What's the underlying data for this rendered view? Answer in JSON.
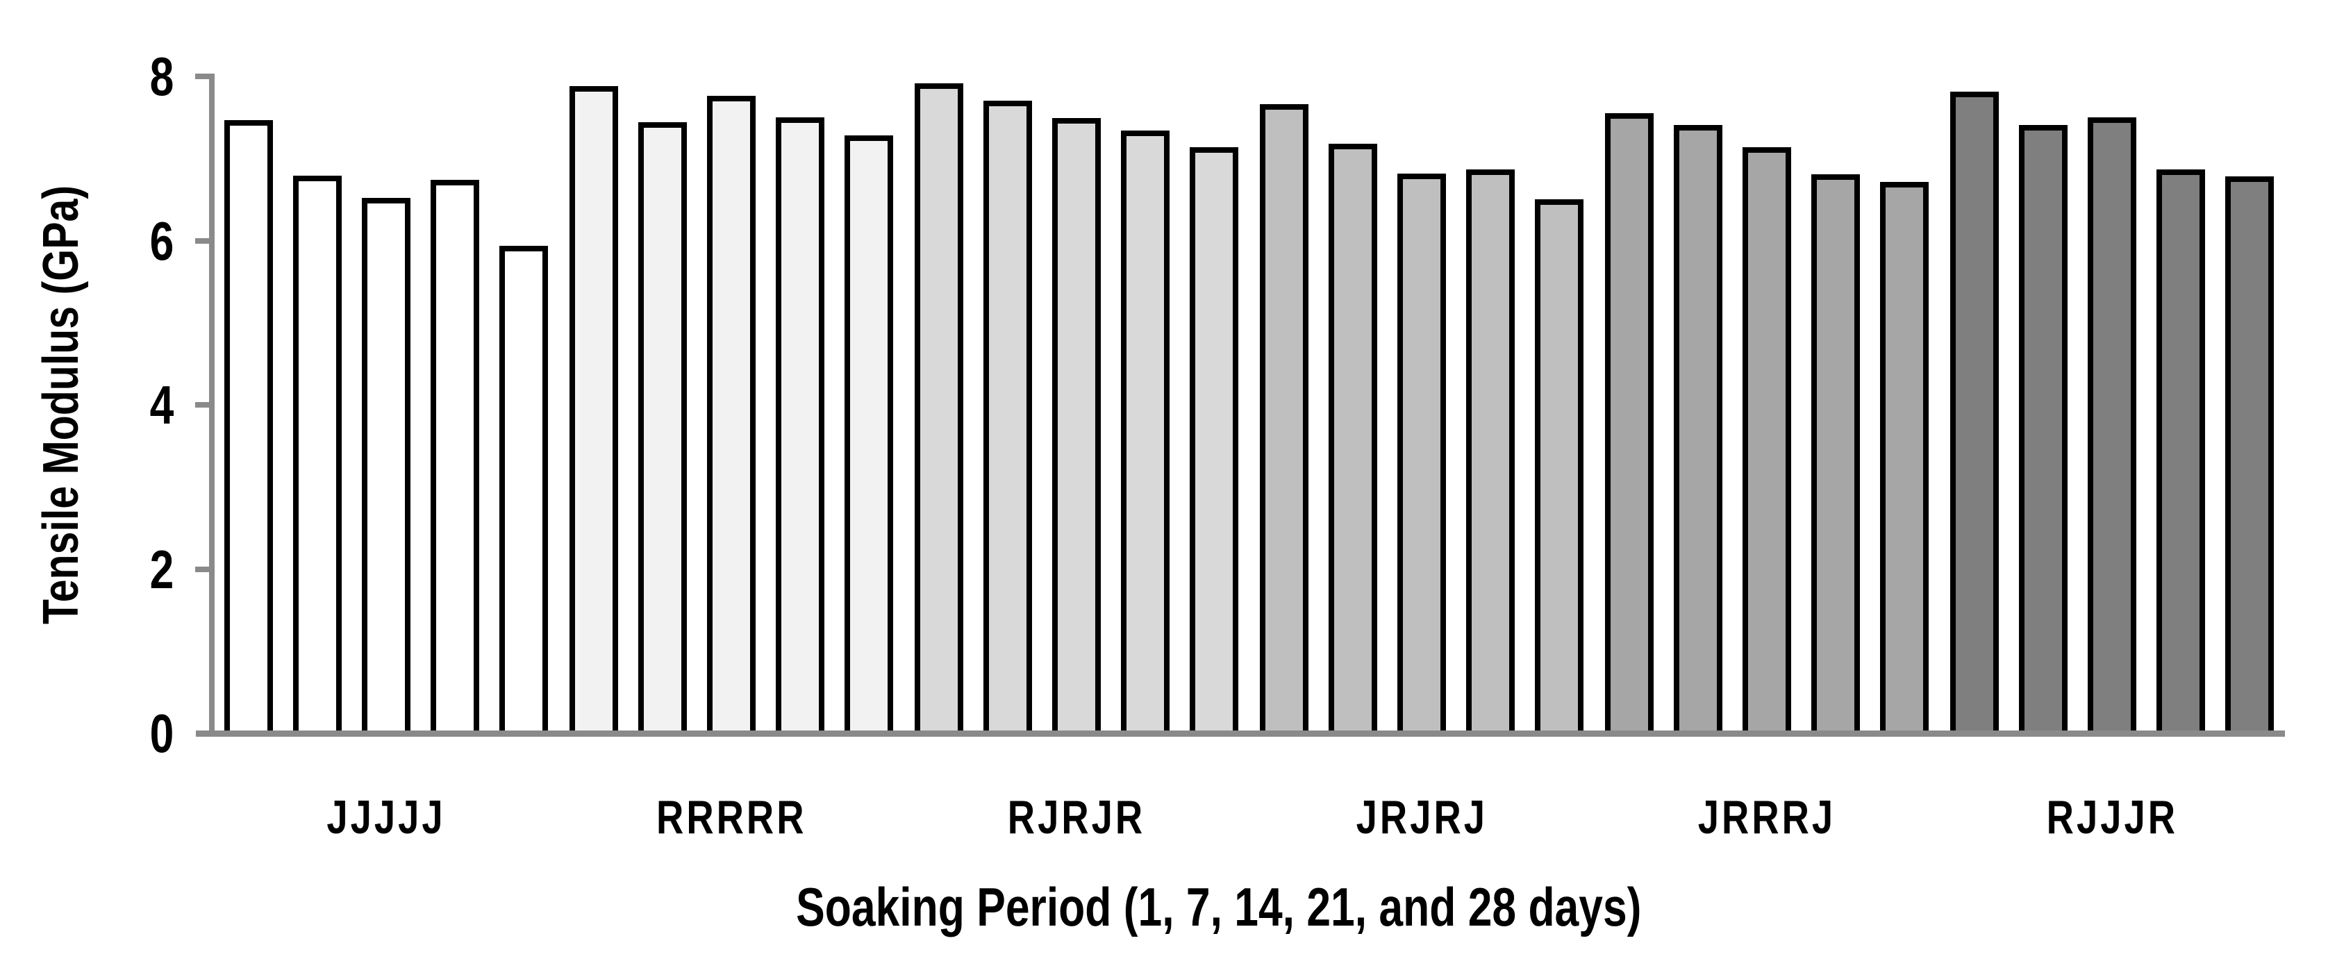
{
  "chart_data": {
    "type": "bar",
    "title": "",
    "xlabel": "Soaking Period (1, 7, 14, 21, and 28 days)",
    "ylabel": "Tensile Modulus (GPa)",
    "ylim": [
      0,
      8
    ],
    "yticks": [
      0,
      2,
      4,
      6,
      8
    ],
    "grid": false,
    "legend": "none",
    "soaking_periods_days": [
      1,
      7,
      14,
      21,
      28
    ],
    "categories": [
      "JJJJJ",
      "RRRRR",
      "RJRJR",
      "JRJRJ",
      "JRRRJ",
      "RJJJR"
    ],
    "groups": [
      {
        "label": "JJJJJ",
        "fill": "#ffffff",
        "values": [
          7.43,
          6.76,
          6.49,
          6.71,
          5.9
        ]
      },
      {
        "label": "RRRRR",
        "fill": "#f2f2f2",
        "values": [
          7.85,
          7.41,
          7.73,
          7.47,
          7.25
        ]
      },
      {
        "label": "RJRJR",
        "fill": "#d9d9d9",
        "values": [
          7.88,
          7.67,
          7.46,
          7.31,
          7.1
        ]
      },
      {
        "label": "JRJRJ",
        "fill": "#bfbfbf",
        "values": [
          7.63,
          7.15,
          6.78,
          6.83,
          6.47
        ]
      },
      {
        "label": "JRRRJ",
        "fill": "#a6a6a6",
        "values": [
          7.52,
          7.37,
          7.1,
          6.77,
          6.68
        ]
      },
      {
        "label": "RJJJR",
        "fill": "#7f7f7f",
        "values": [
          7.78,
          7.37,
          7.47,
          6.83,
          6.75
        ]
      }
    ],
    "bar_border_color": "#000000",
    "axis_color": "#8a8a8a",
    "text_color": "#000000"
  }
}
